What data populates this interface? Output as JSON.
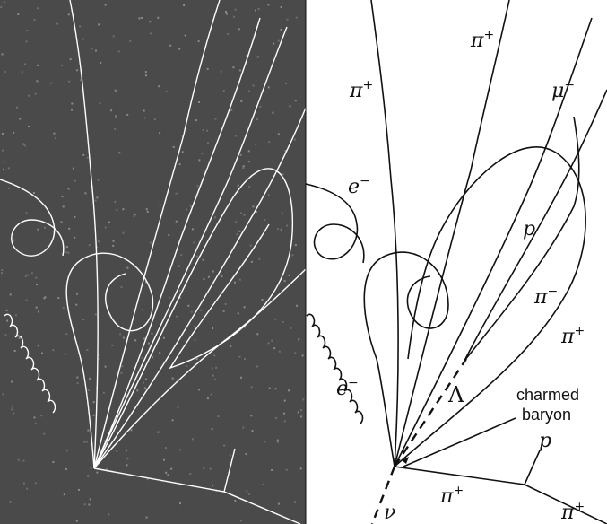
{
  "labels": {
    "pi_plus_1": "π",
    "pi_plus_1_sup": "+",
    "pi_plus_2": "π",
    "pi_plus_2_sup": "+",
    "mu_minus": "μ",
    "mu_minus_sup": "−",
    "e_minus_1": "e",
    "e_minus_1_sup": "−",
    "e_minus_2": "e",
    "e_minus_2_sup": "−",
    "p_1": "p",
    "pi_minus": "π",
    "pi_minus_sup": "−",
    "pi_plus_3": "π",
    "pi_plus_3_sup": "+",
    "lambda": "Λ",
    "charmed": "charmed",
    "baryon": "baryon",
    "p_2": "p",
    "pi_plus_4": "π",
    "pi_plus_4_sup": "+",
    "pi_plus_5": "π",
    "pi_plus_5_sup": "+",
    "nu": "ν"
  },
  "colors": {
    "photo_background": "#4a4a4a",
    "photo_track": "#ffffff",
    "diagram_track": "#111111",
    "diagram_background": "#ffffff"
  }
}
